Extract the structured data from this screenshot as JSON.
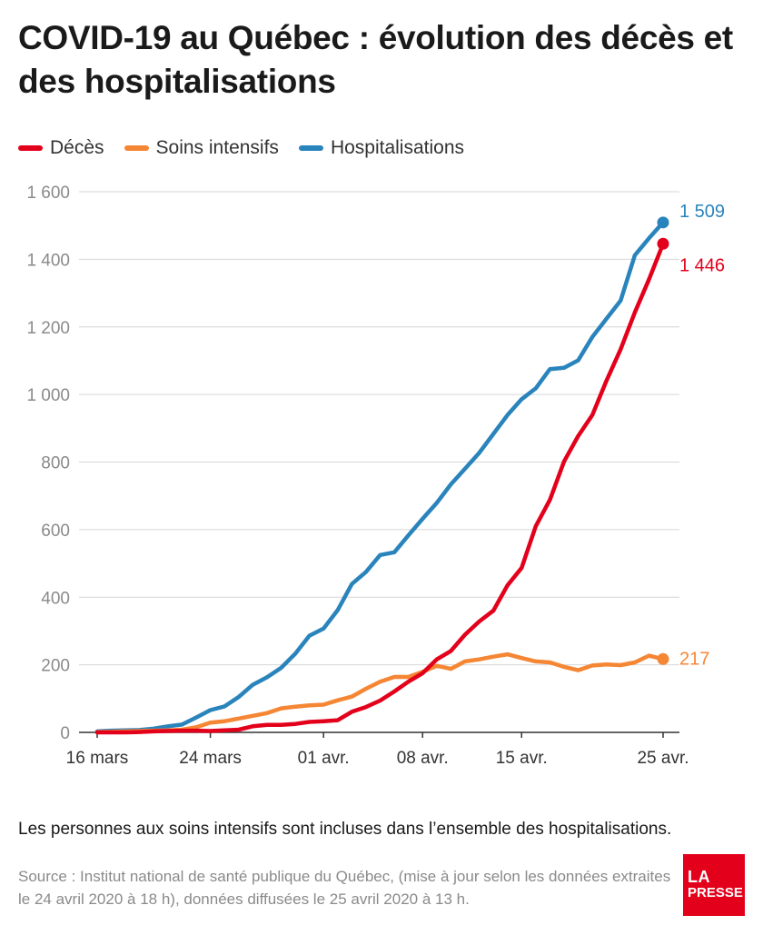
{
  "header": {
    "title": "COVID-19 au Québec : évolution des décès et des hospitalisations"
  },
  "legend": {
    "items": [
      {
        "label": "Décès",
        "color": "#e3001b"
      },
      {
        "label": "Soins intensifs",
        "color": "#f58634"
      },
      {
        "label": "Hospitalisations",
        "color": "#2a84bc"
      }
    ]
  },
  "chart_data": {
    "type": "line",
    "title": "COVID-19 au Québec : évolution des décès et des hospitalisations",
    "xlabel": "",
    "ylabel": "",
    "x": [
      "16 mars",
      "17 mars",
      "18 mars",
      "19 mars",
      "20 mars",
      "21 mars",
      "22 mars",
      "23 mars",
      "24 mars",
      "25 mars",
      "26 mars",
      "27 mars",
      "28 mars",
      "29 mars",
      "30 mars",
      "31 mars",
      "01 avr.",
      "02 avr.",
      "03 avr.",
      "04 avr.",
      "05 avr.",
      "06 avr.",
      "07 avr.",
      "08 avr.",
      "09 avr.",
      "10 avr.",
      "11 avr.",
      "12 avr.",
      "13 avr.",
      "14 avr.",
      "15 avr.",
      "16 avr.",
      "17 avr.",
      "18 avr.",
      "19 avr.",
      "20 avr.",
      "21 avr.",
      "22 avr.",
      "23 avr.",
      "24 avr.",
      "25 avr."
    ],
    "x_ticks": [
      "16 mars",
      "24 mars",
      "01 avr.",
      "08 avr.",
      "15 avr.",
      "25 avr."
    ],
    "ylim": [
      0,
      1600
    ],
    "y_ticks": [
      0,
      200,
      400,
      600,
      800,
      1000,
      1200,
      1400,
      1600
    ],
    "y_tick_labels": [
      "0",
      "200",
      "400",
      "600",
      "800",
      "1 000",
      "1 200",
      "1 400",
      "1 600"
    ],
    "grid": true,
    "legend_position": "top-left",
    "series": [
      {
        "name": "Hospitalisations",
        "color": "#2a84bc",
        "values": [
          3,
          5,
          6,
          7,
          11,
          18,
          23,
          44,
          66,
          77,
          105,
          141,
          163,
          191,
          233,
          286,
          307,
          362,
          439,
          475,
          525,
          533,
          583,
          632,
          679,
          734,
          780,
          827,
          883,
          939,
          986,
          1018,
          1075,
          1079,
          1101,
          1170,
          1224,
          1278,
          1412,
          1462,
          1509
        ],
        "end_label": "1 509"
      },
      {
        "name": "Décès",
        "color": "#e3001b",
        "values": [
          0,
          0,
          0,
          1,
          3,
          4,
          5,
          5,
          4,
          6,
          8,
          18,
          22,
          22,
          25,
          31,
          33,
          36,
          61,
          75,
          94,
          121,
          150,
          175,
          216,
          241,
          289,
          328,
          360,
          435,
          487,
          610,
          688,
          802,
          877,
          939,
          1041,
          1134,
          1243,
          1340,
          1446
        ],
        "end_label": "1 446"
      },
      {
        "name": "Soins intensifs",
        "color": "#f58634",
        "values": [
          1,
          2,
          3,
          4,
          5,
          6,
          8,
          15,
          29,
          33,
          41,
          49,
          57,
          71,
          76,
          80,
          82,
          95,
          106,
          129,
          150,
          164,
          164,
          179,
          197,
          188,
          210,
          216,
          224,
          231,
          220,
          210,
          207,
          194,
          184,
          198,
          201,
          199,
          207,
          227,
          217
        ],
        "end_label": "217"
      }
    ]
  },
  "footer": {
    "note": "Les personnes aux soins intensifs sont incluses dans l’ensemble des hospitalisations.",
    "source": "Source : Institut national de santé publique du Québec, (mise à jour selon les données extraites le 24 avril 2020 à 18 h), données diffusées le 25 avril 2020 à 13 h.",
    "logo_line1": "LA",
    "logo_line2": "PRESSE",
    "logo_color": "#e3001b"
  }
}
